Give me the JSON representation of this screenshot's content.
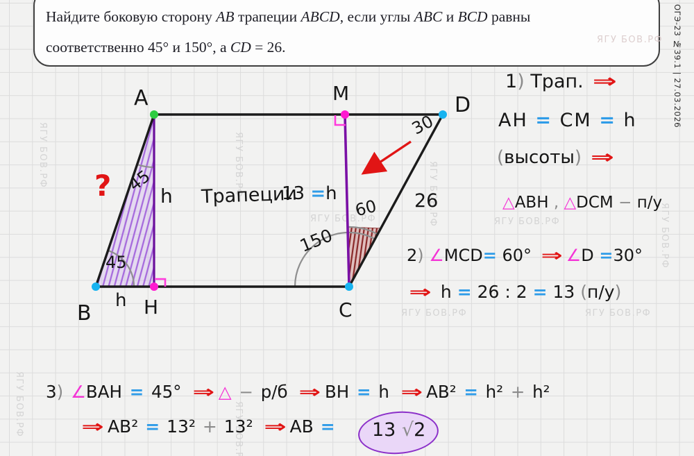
{
  "edge_label": "ОГЭ-23 №39.1 | 27.03.2026",
  "watermark_text": "ЯГУ БОВ.РФ",
  "problem": {
    "line1": [
      {
        "t": "Найдите боковую сторону ",
        "c": "serif"
      },
      {
        "t": "AB",
        "c": "mathit"
      },
      {
        "t": " трапеции ",
        "c": "serif"
      },
      {
        "t": "ABCD",
        "c": "mathit"
      },
      {
        "t": ", если углы ",
        "c": "serif"
      },
      {
        "t": "ABC",
        "c": "mathit"
      },
      {
        "t": " и ",
        "c": "serif"
      },
      {
        "t": "BCD",
        "c": "mathit"
      },
      {
        "t": " равны",
        "c": "serif"
      }
    ],
    "line2": [
      {
        "t": "соответственно 45° и 150°, а ",
        "c": "serif"
      },
      {
        "t": "CD",
        "c": "mathit"
      },
      {
        "t": " = 26.",
        "c": "serif"
      }
    ]
  },
  "diagram": {
    "vertex_a": "A",
    "vertex_m": "M",
    "vertex_d": "D",
    "vertex_b": "B",
    "vertex_h": "H",
    "vertex_c": "C",
    "height_label": "h",
    "segment_bh_label": "h",
    "question_mark": "?",
    "angle_at_a": "45",
    "angle_at_b": "45",
    "angle_at_d": "30",
    "angle_at_c": "150",
    "angle_mcd": "60",
    "side_cd": "26",
    "note_trapezoid": "Трапеции",
    "mc_equation": [
      {
        "t": "13 ",
        "c": "ink"
      },
      {
        "t": "=",
        "c": "blue"
      },
      {
        "t": "h",
        "c": "ink"
      }
    ]
  },
  "solution": {
    "step1_title": [
      {
        "t": "1",
        "c": "ink"
      },
      {
        "t": ") ",
        "c": "gray"
      },
      {
        "t": "Трап. ",
        "c": "ink"
      },
      {
        "t": "⇒",
        "c": "arrow"
      }
    ],
    "step1_heights": [
      {
        "t": "АН ",
        "c": "ink"
      },
      {
        "t": "=",
        "c": "blue"
      },
      {
        "t": " СМ ",
        "c": "ink"
      },
      {
        "t": "=",
        "c": "blue"
      },
      {
        "t": " h",
        "c": "ink"
      }
    ],
    "step1_heights_note": [
      {
        "t": "(",
        "c": "gray"
      },
      {
        "t": "высоты",
        "c": "ink"
      },
      {
        "t": ") ",
        "c": "gray"
      },
      {
        "t": "⇒",
        "c": "arrow"
      }
    ],
    "step1_triangles": [
      {
        "t": "△",
        "c": "pink"
      },
      {
        "t": "АВН",
        "c": "ink"
      },
      {
        "t": " , ",
        "c": "gray"
      },
      {
        "t": "△",
        "c": "pink"
      },
      {
        "t": "DCM",
        "c": "ink"
      },
      {
        "t": " − ",
        "c": "gray"
      },
      {
        "t": "п/у",
        "c": "ink"
      }
    ],
    "step2_line1": [
      {
        "t": "2",
        "c": "ink"
      },
      {
        "t": ") ",
        "c": "gray"
      },
      {
        "t": "∠",
        "c": "pink"
      },
      {
        "t": "MCD",
        "c": "ink"
      },
      {
        "t": "=",
        "c": "blue"
      },
      {
        "t": " 60° ",
        "c": "ink"
      },
      {
        "t": "⇒",
        "c": "arrow"
      },
      {
        "t": "∠",
        "c": "pink"
      },
      {
        "t": "D ",
        "c": "ink"
      },
      {
        "t": "=",
        "c": "blue"
      },
      {
        "t": "30°",
        "c": "ink"
      }
    ],
    "step2_line2": [
      {
        "t": "⇒",
        "c": "arrow"
      },
      {
        "t": " h ",
        "c": "ink"
      },
      {
        "t": "=",
        "c": "blue"
      },
      {
        "t": " 26 : 2 ",
        "c": "ink"
      },
      {
        "t": "=",
        "c": "blue"
      },
      {
        "t": " 13 ",
        "c": "ink"
      },
      {
        "t": "(",
        "c": "gray"
      },
      {
        "t": "п/у",
        "c": "ink"
      },
      {
        "t": ")",
        "c": "gray"
      }
    ],
    "step3_line1": [
      {
        "t": "3",
        "c": "ink"
      },
      {
        "t": ") ",
        "c": "gray"
      },
      {
        "t": "∠",
        "c": "pink"
      },
      {
        "t": "ВАН ",
        "c": "ink"
      },
      {
        "t": "=",
        "c": "blue"
      },
      {
        "t": " 45° ",
        "c": "ink"
      },
      {
        "t": "⇒",
        "c": "arrow"
      },
      {
        "t": "△",
        "c": "pink"
      },
      {
        "t": " − ",
        "c": "gray"
      },
      {
        "t": "р/б ",
        "c": "ink"
      },
      {
        "t": "⇒",
        "c": "arrow"
      },
      {
        "t": "ВН ",
        "c": "ink"
      },
      {
        "t": "=",
        "c": "blue"
      },
      {
        "t": " h ",
        "c": "ink"
      },
      {
        "t": "⇒",
        "c": "arrow"
      },
      {
        "t": "АВ² ",
        "c": "ink"
      },
      {
        "t": "=",
        "c": "blue"
      },
      {
        "t": " h² ",
        "c": "ink"
      },
      {
        "t": "+",
        "c": "gray"
      },
      {
        "t": " h²",
        "c": "ink"
      }
    ],
    "step3_line2": [
      {
        "t": "⇒",
        "c": "arrow"
      },
      {
        "t": "АВ² ",
        "c": "ink"
      },
      {
        "t": "=",
        "c": "blue"
      },
      {
        "t": " 13² ",
        "c": "ink"
      },
      {
        "t": "+",
        "c": "gray"
      },
      {
        "t": " 13² ",
        "c": "ink"
      },
      {
        "t": "⇒",
        "c": "arrow"
      },
      {
        "t": "АВ ",
        "c": "ink"
      },
      {
        "t": "=",
        "c": "blue"
      }
    ],
    "answer": [
      {
        "t": "13 ",
        "c": "ink"
      },
      {
        "t": "√",
        "c": "gray"
      },
      {
        "t": "2",
        "c": "ink"
      }
    ]
  }
}
